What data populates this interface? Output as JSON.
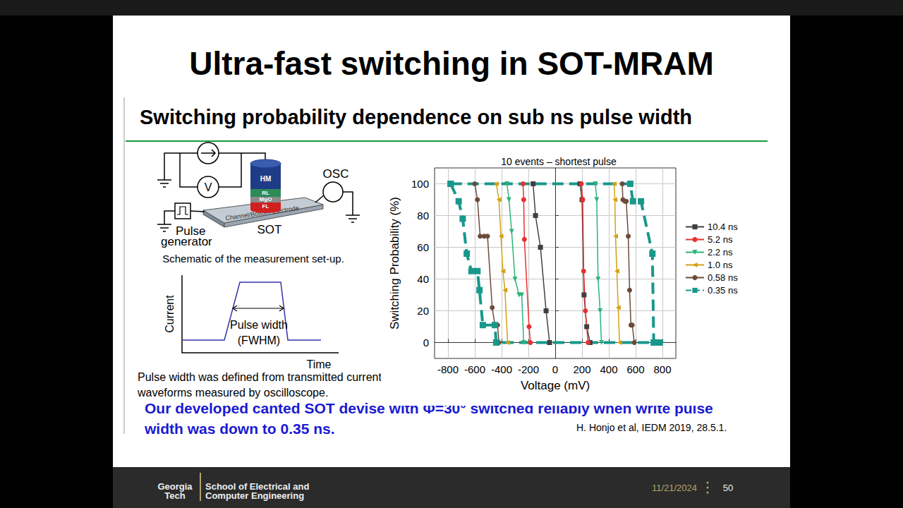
{
  "slide": {
    "title": "Ultra-fast switching in SOT-MRAM",
    "subtitle": "Switching probability dependence on sub ns pulse width",
    "schematic": {
      "layers": [
        "HM",
        "RL",
        "MgO",
        "FL"
      ],
      "channel": "Channel/Bottom Electrode",
      "sot": "SOT",
      "osc": "OSC",
      "voltmeter": "V",
      "pulse_generator": [
        "Pulse",
        "generator"
      ],
      "caption": "Schematic of the measurement set-up."
    },
    "pulse_sketch": {
      "y_label": "Current",
      "x_label": "Time",
      "width_label": [
        "Pulse width",
        "(FWHM)"
      ]
    },
    "note": "Pulse width was defined from transmitted current waveforms measured by oscilloscope.",
    "conclusion": "Our developed canted SOT devise with Φ=30° switched reliably when write pulse width was down to 0.35 ns.",
    "citation": "H. Honjo et al, IEDM 2019, 28.5.1.",
    "footer": {
      "logo": [
        "Georgia",
        "Tech"
      ],
      "school": [
        "School of Electrical and",
        "Computer Engineering"
      ],
      "date": "11/21/2024",
      "page": "50"
    }
  },
  "chart_data": {
    "type": "line",
    "title": "10 events – shortest pulse",
    "x_label": "Voltage (mV)",
    "y_label": "Switching Probability (%)",
    "xlim": [
      -900,
      900
    ],
    "xticks": [
      -800,
      -600,
      -400,
      -200,
      0,
      200,
      400,
      600,
      800
    ],
    "ylim": [
      -10,
      110
    ],
    "yticks": [
      0,
      20,
      40,
      60,
      80,
      100
    ],
    "grid": true,
    "legend": "right",
    "series": [
      {
        "name": "10.4 ns",
        "color": "#404040",
        "marker": "square",
        "line_style": "solid",
        "x": [
          -165,
          -147,
          -110,
          -68,
          -42,
          null,
          185,
          200,
          215,
          235,
          260
        ],
        "values": [
          100,
          80,
          60,
          20,
          0,
          null,
          100,
          90,
          30,
          10,
          0
        ]
      },
      {
        "name": "5.2 ns",
        "color": "#e83030",
        "marker": "circle",
        "line_style": "solid",
        "x": [
          -240,
          -235,
          -230,
          -195,
          -185,
          null,
          195,
          205,
          212,
          225,
          245
        ],
        "values": [
          100,
          90,
          65,
          10,
          0,
          null,
          100,
          90,
          45,
          20,
          0
        ]
      },
      {
        "name": "2.2 ns",
        "color": "#2db37a",
        "marker": "triangle_down",
        "line_style": "solid",
        "x": [
          -360,
          -345,
          -325,
          -300,
          -270,
          -250,
          -235,
          null,
          300,
          310,
          320,
          335,
          345
        ],
        "values": [
          100,
          90,
          70,
          40,
          30,
          30,
          0,
          null,
          100,
          90,
          40,
          20,
          0
        ]
      },
      {
        "name": "1.0 ns",
        "color": "#d4a010",
        "marker": "triangle_left",
        "line_style": "solid",
        "x": [
          -440,
          -420,
          -405,
          -390,
          -375,
          -355,
          null,
          440,
          445,
          450,
          460,
          470,
          480
        ],
        "values": [
          100,
          90,
          67,
          45,
          33,
          0,
          null,
          100,
          90,
          67,
          45,
          22,
          0
        ]
      },
      {
        "name": "0.58 ns",
        "color": "#6b4a3a",
        "marker": "circle",
        "line_style": "solid",
        "x": [
          -600,
          -580,
          -560,
          -530,
          -505,
          -470,
          -450,
          -430,
          -420,
          null,
          500,
          505,
          520,
          530,
          545,
          555,
          565,
          575,
          590
        ],
        "values": [
          100,
          90,
          67,
          67,
          67,
          22,
          11,
          11,
          0,
          null,
          100,
          90,
          89,
          89,
          67,
          33,
          11,
          11,
          0
        ]
      },
      {
        "name": "0.35 ns",
        "color": "#18988b",
        "marker": "square",
        "line_style": "dashed",
        "x": [
          -780,
          -720,
          -690,
          -660,
          -625,
          -580,
          -565,
          -540,
          -450,
          -440,
          780,
          null,
          -780,
          560,
          580,
          640,
          725,
          735
        ],
        "values": [
          100,
          89,
          78,
          56,
          45,
          45,
          33,
          11,
          11,
          0,
          0,
          null,
          100,
          100,
          89,
          89,
          56,
          0
        ]
      }
    ]
  }
}
